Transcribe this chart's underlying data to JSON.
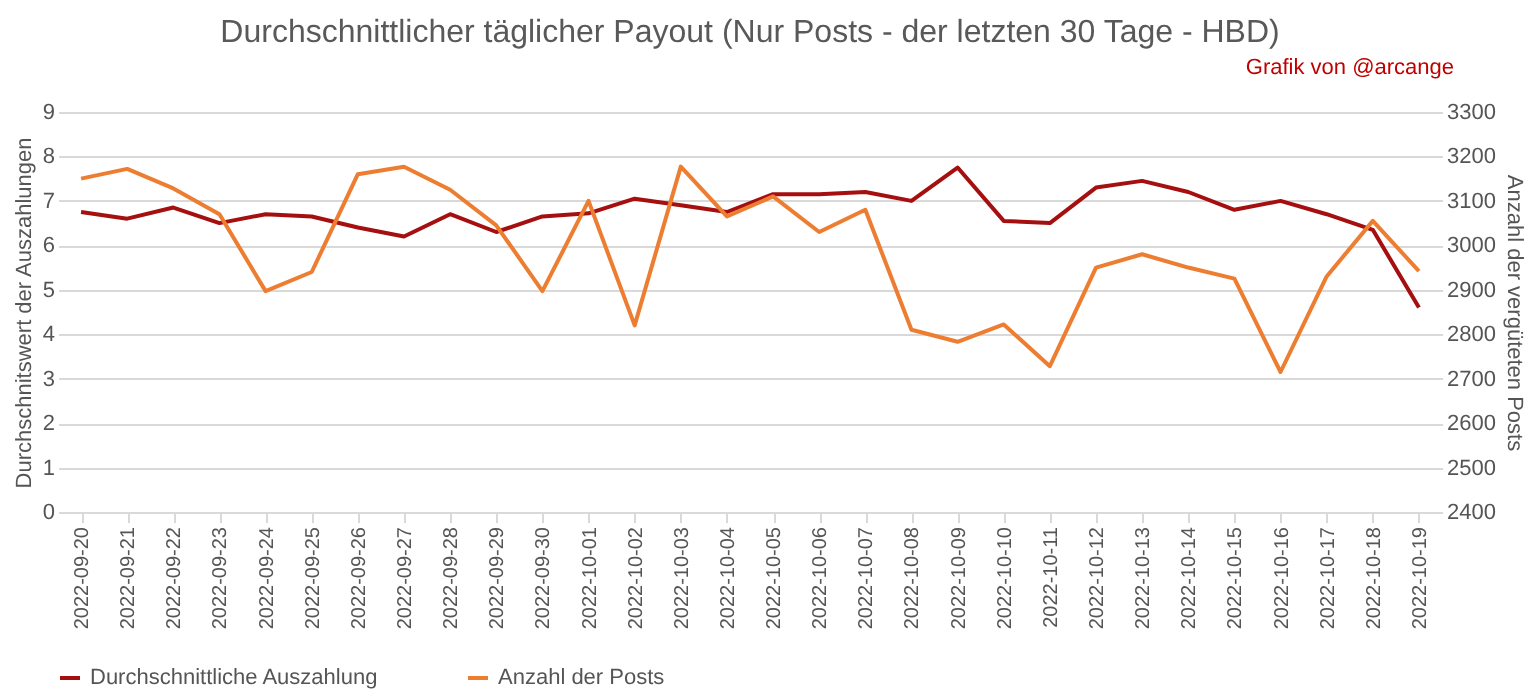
{
  "chart_data": {
    "type": "line",
    "title": "Durchschnittlicher täglicher Payout (Nur Posts - der letzten 30 Tage - HBD)",
    "annotations": [
      "Grafik von @arcange"
    ],
    "categories": [
      "2022-09-20",
      "2022-09-21",
      "2022-09-22",
      "2022-09-23",
      "2022-09-24",
      "2022-09-25",
      "2022-09-26",
      "2022-09-27",
      "2022-09-28",
      "2022-09-29",
      "2022-09-30",
      "2022-10-01",
      "2022-10-02",
      "2022-10-03",
      "2022-10-04",
      "2022-10-05",
      "2022-10-06",
      "2022-10-07",
      "2022-10-08",
      "2022-10-09",
      "2022-10-10",
      "2022-10-11",
      "2022-10-12",
      "2022-10-13",
      "2022-10-14",
      "2022-10-15",
      "2022-10-16",
      "2022-10-17",
      "2022-10-18",
      "2022-10-19"
    ],
    "series": [
      {
        "name": "Durchschnittliche Auszahlung",
        "color": "#a50f0f",
        "values": [
          6.75,
          6.6,
          6.85,
          6.5,
          6.7,
          6.65,
          6.4,
          6.2,
          6.7,
          6.3,
          6.65,
          6.72,
          7.05,
          6.9,
          6.75,
          7.15,
          7.15,
          7.2,
          7.0,
          7.75,
          6.55,
          6.5,
          7.3,
          7.45,
          7.2,
          6.8,
          7.0,
          6.7,
          6.35,
          4.6
        ]
      },
      {
        "name": "Anzahl der Posts",
        "color": "#ed7d31",
        "axis": "y2",
        "values": [
          3150,
          3172,
          3128,
          3070,
          2897,
          2940,
          3160,
          3177,
          3125,
          3045,
          2897,
          3100,
          2820,
          3177,
          3065,
          3110,
          3030,
          3080,
          2810,
          2783,
          2822,
          2728,
          2950,
          2980,
          2950,
          2925,
          2715,
          2930,
          3055,
          2942
        ]
      }
    ],
    "ylabel": "Durchschnitswert der Auszahlungen",
    "y2label": "Anzahl der vergüteten  Posts",
    "ylim": [
      0,
      9
    ],
    "yticks": [
      0,
      1,
      2,
      3,
      4,
      5,
      6,
      7,
      8,
      9
    ],
    "y2lim": [
      2400,
      3300
    ],
    "y2ticks": [
      2400,
      2500,
      2600,
      2700,
      2800,
      2900,
      3000,
      3100,
      3200,
      3300
    ],
    "grid": "y",
    "legend": "bottom"
  }
}
